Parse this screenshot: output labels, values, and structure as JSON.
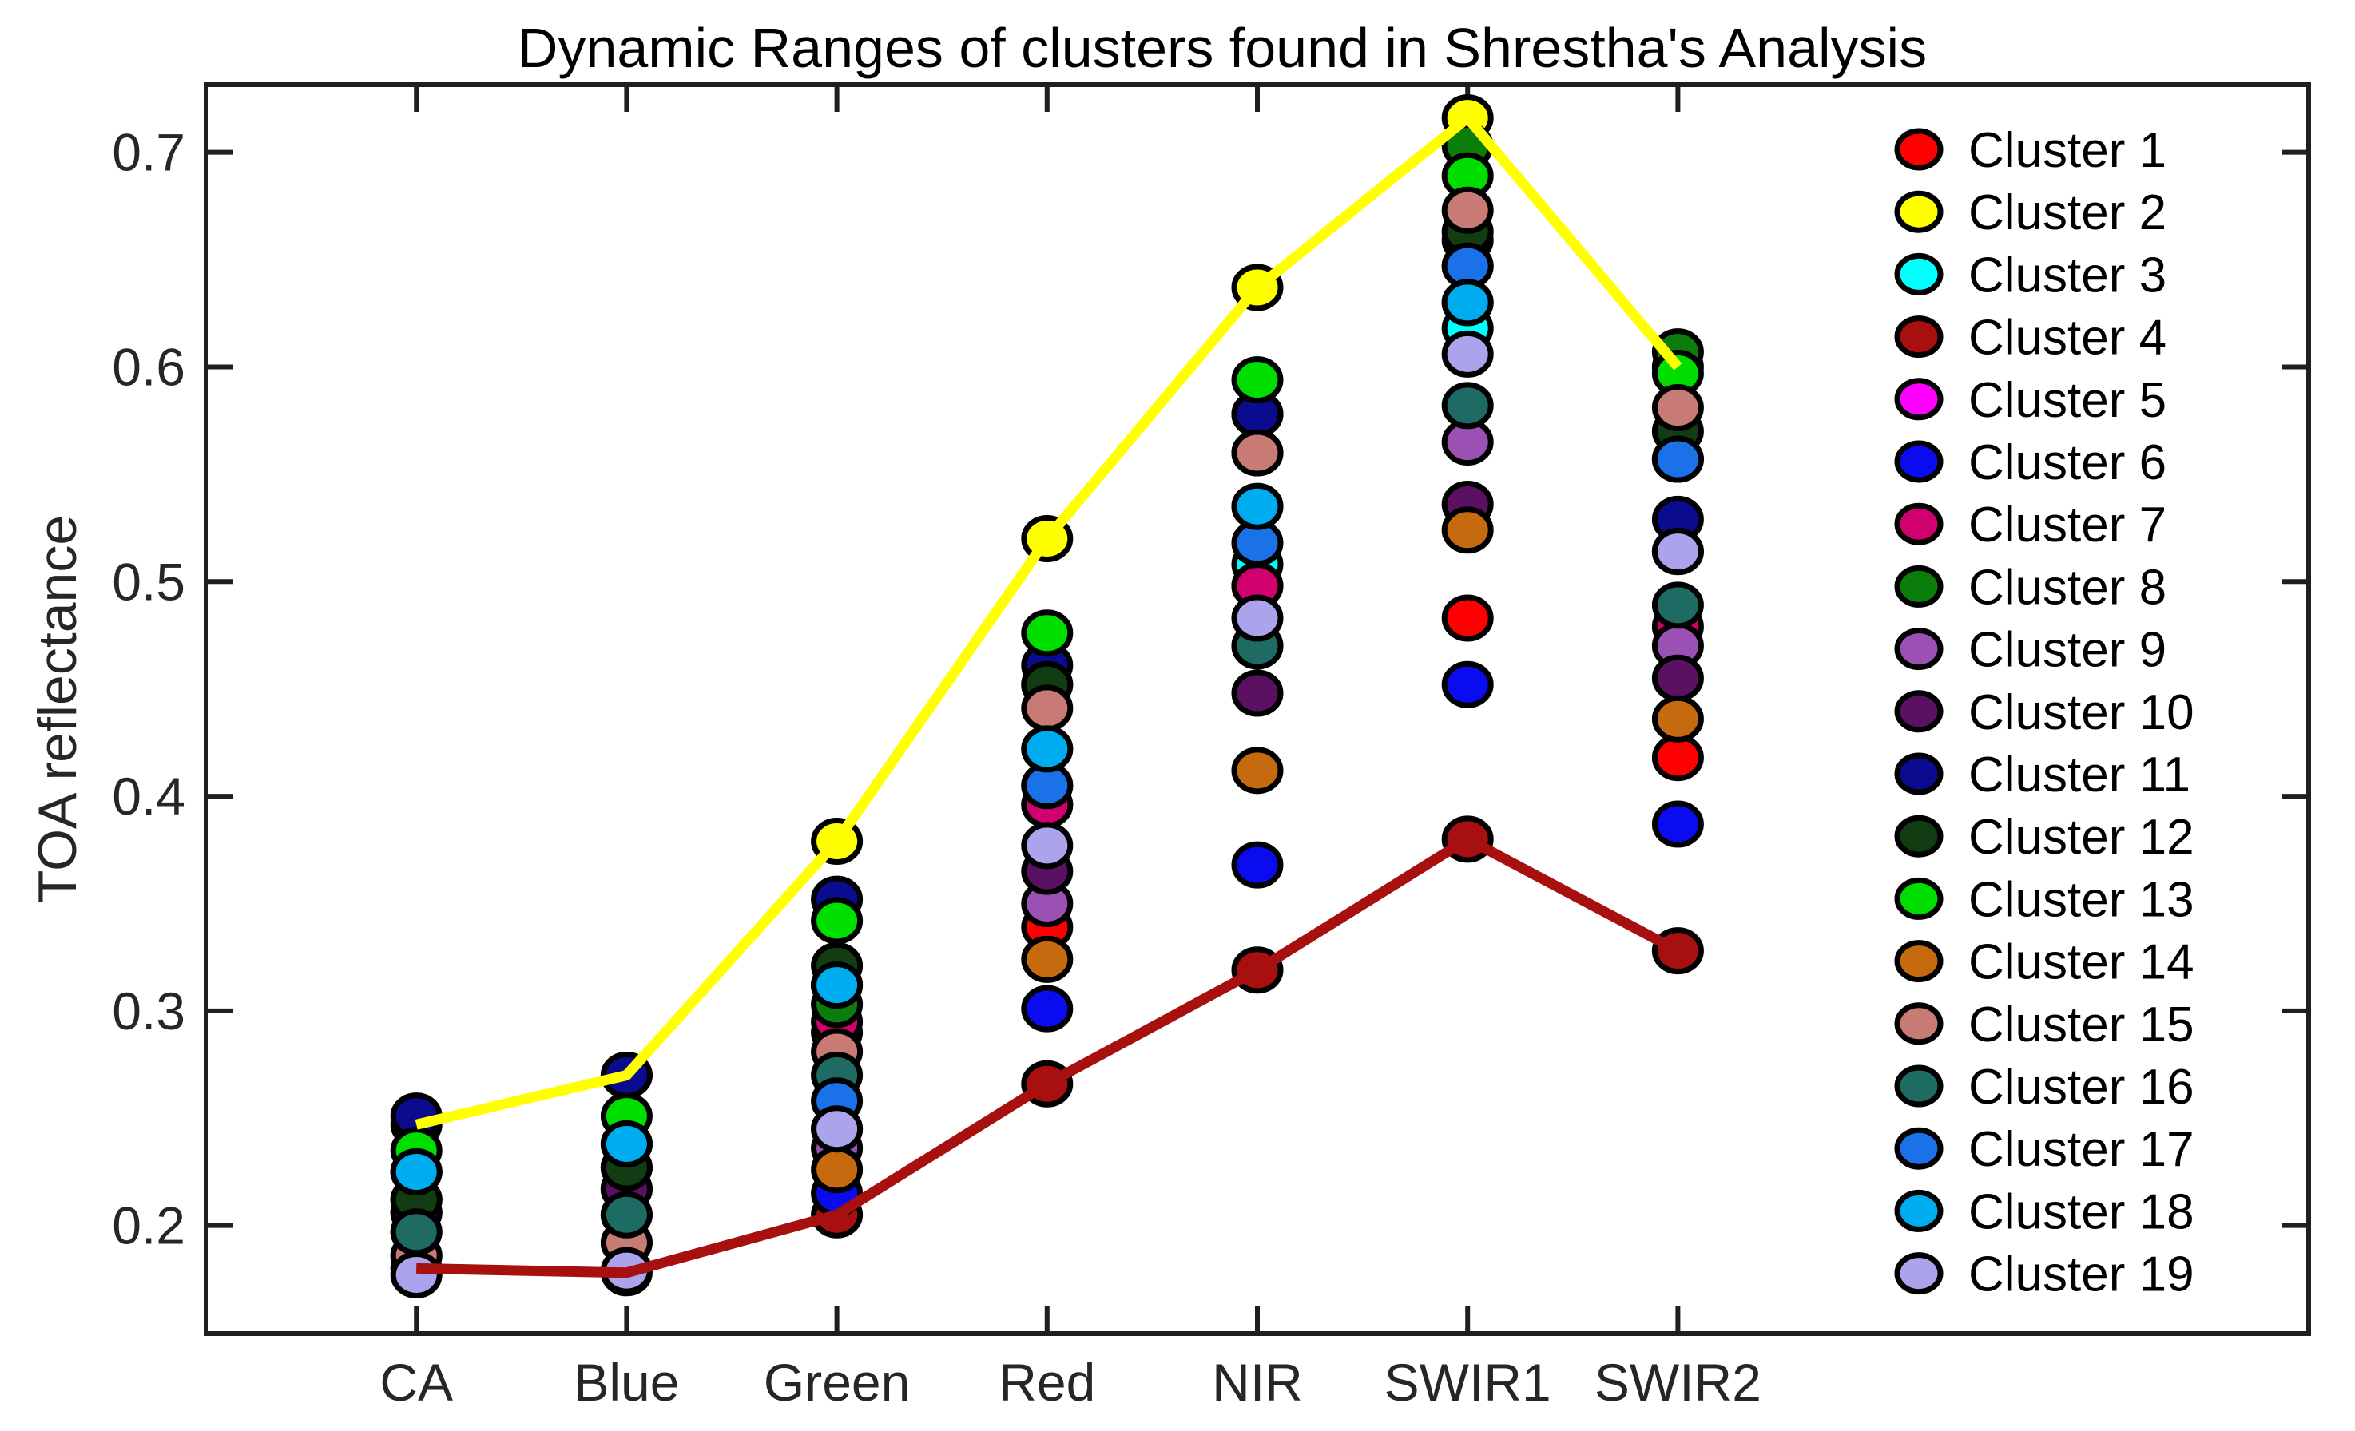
{
  "title": "Dynamic Ranges  of clusters found in Shrestha's Analysis",
  "ylabel": "TOA reflectance",
  "chart_data": {
    "type": "scatter",
    "title": "Dynamic Ranges  of clusters found in Shrestha's Analysis",
    "xlabel": "",
    "ylabel": "TOA reflectance",
    "categories": [
      "CA",
      "Blue",
      "Green",
      "Red",
      "NIR",
      "SWIR1",
      "SWIR2"
    ],
    "yticks": [
      "0.2",
      "0.3",
      "0.4",
      "0.5",
      "0.6",
      "0.7"
    ],
    "ylim": [
      0.15,
      0.7315
    ],
    "grid": false,
    "legend_position": "right-inside",
    "marker": "filled-circle-black-edge",
    "envelope_note": "Cluster 2 (max envelope, yellow line) and Cluster 4 (min envelope, dark red line) are connected with lines",
    "series": [
      {
        "name": "Cluster 1",
        "color": "#FF0000",
        "line": false,
        "values": [
          0.225,
          0.238,
          0.312,
          0.339,
          0.535,
          0.483,
          0.418
        ]
      },
      {
        "name": "Cluster 2",
        "color": "#FFFF00",
        "line": true,
        "values": [
          0.247,
          0.27,
          0.379,
          0.52,
          0.637,
          0.716,
          0.6
        ]
      },
      {
        "name": "Cluster 3",
        "color": "#00FFFF",
        "line": false,
        "values": [
          0.225,
          0.238,
          0.312,
          0.422,
          0.508,
          0.618,
          0.557
        ]
      },
      {
        "name": "Cluster 4",
        "color": "#A80F0F",
        "line": true,
        "values": [
          0.18,
          0.178,
          0.205,
          0.266,
          0.319,
          0.38,
          0.328
        ]
      },
      {
        "name": "Cluster 5",
        "color": "#FF00FF",
        "line": false,
        "values": [
          0.212,
          0.227,
          0.29,
          0.396,
          0.498,
          0.63,
          0.557
        ]
      },
      {
        "name": "Cluster 6",
        "color": "#0B0BEF",
        "line": false,
        "values": [
          0.206,
          0.217,
          0.215,
          0.301,
          0.368,
          0.452,
          0.387
        ]
      },
      {
        "name": "Cluster 7",
        "color": "#D0006E",
        "line": false,
        "values": [
          0.197,
          0.205,
          0.295,
          0.396,
          0.498,
          0.647,
          0.479
        ]
      },
      {
        "name": "Cluster 8",
        "color": "#0B7D0B",
        "line": false,
        "values": [
          0.212,
          0.227,
          0.303,
          0.452,
          0.578,
          0.703,
          0.607
        ]
      },
      {
        "name": "Cluster 9",
        "color": "#9B51B3",
        "line": false,
        "values": [
          0.206,
          0.217,
          0.236,
          0.35,
          0.47,
          0.565,
          0.47
        ]
      },
      {
        "name": "Cluster 10",
        "color": "#5B1161",
        "line": false,
        "values": [
          0.206,
          0.217,
          0.245,
          0.365,
          0.448,
          0.536,
          0.455
        ]
      },
      {
        "name": "Cluster 11",
        "color": "#0B0B8F",
        "line": false,
        "values": [
          0.251,
          0.27,
          0.352,
          0.461,
          0.578,
          0.659,
          0.529
        ]
      },
      {
        "name": "Cluster 12",
        "color": "#123D12",
        "line": false,
        "values": [
          0.212,
          0.227,
          0.321,
          0.452,
          0.56,
          0.663,
          0.57
        ]
      },
      {
        "name": "Cluster 13",
        "color": "#00DE00",
        "line": false,
        "values": [
          0.235,
          0.251,
          0.342,
          0.476,
          0.594,
          0.689,
          0.597
        ]
      },
      {
        "name": "Cluster 14",
        "color": "#C66A10",
        "line": false,
        "values": [
          0.186,
          0.192,
          0.226,
          0.324,
          0.412,
          0.524,
          0.436
        ]
      },
      {
        "name": "Cluster 15",
        "color": "#C77B74",
        "line": false,
        "values": [
          0.186,
          0.192,
          0.281,
          0.441,
          0.56,
          0.673,
          0.581
        ]
      },
      {
        "name": "Cluster 16",
        "color": "#1D6B62",
        "line": false,
        "values": [
          0.197,
          0.205,
          0.27,
          0.405,
          0.47,
          0.582,
          0.489
        ]
      },
      {
        "name": "Cluster 17",
        "color": "#1A71E8",
        "line": false,
        "values": [
          0.225,
          0.238,
          0.258,
          0.405,
          0.518,
          0.647,
          0.557
        ]
      },
      {
        "name": "Cluster 18",
        "color": "#00ACF0",
        "line": false,
        "values": [
          0.225,
          0.238,
          0.312,
          0.422,
          0.535,
          0.63,
          0.514
        ]
      },
      {
        "name": "Cluster 19",
        "color": "#ABA4EC",
        "line": false,
        "values": [
          0.177,
          0.179,
          0.245,
          0.377,
          0.483,
          0.606,
          0.514
        ]
      }
    ],
    "colors": {
      "axis": "#1F1F1F",
      "tick_label": "#262626",
      "title": "#000000",
      "background": "#FFFFFF",
      "max_envelope_line": "#FFFF00",
      "min_envelope_line": "#A80F0F"
    }
  }
}
